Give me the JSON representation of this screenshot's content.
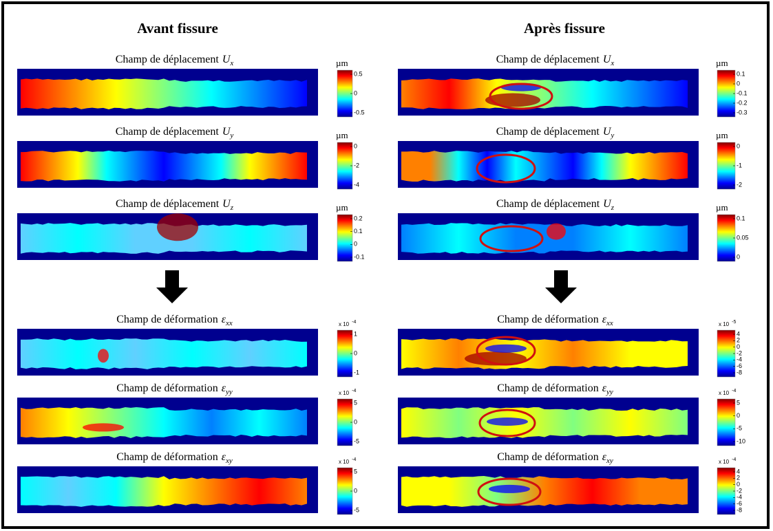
{
  "columns": [
    {
      "title": "Avant  fissure",
      "panels": [
        {
          "label": "Champ de déplacement",
          "symbol": "U",
          "sub": "x",
          "unit": "µm",
          "ticks": [
            "0.5",
            "0",
            "-0.5"
          ]
        },
        {
          "label": "Champ de déplacement",
          "symbol": "U",
          "sub": "y",
          "unit": "µm",
          "ticks": [
            "0",
            "-2",
            "-4"
          ]
        },
        {
          "label": "Champ de déplacement",
          "symbol": "U",
          "sub": "z",
          "unit": "µm",
          "ticks": [
            "0.2",
            "0.1",
            "0",
            "-0.1"
          ]
        },
        {
          "label": "Champ de déformation",
          "symbol": "ε",
          "sub": "xx",
          "unit": "x 10",
          "exp": "-4",
          "ticks": [
            "1",
            "0",
            "-1"
          ]
        },
        {
          "label": "Champ de déformation",
          "symbol": "ε",
          "sub": "yy",
          "unit": "x 10",
          "exp": "-4",
          "ticks": [
            "5",
            "0",
            "-5"
          ]
        },
        {
          "label": "Champ de déformation",
          "symbol": "ε",
          "sub": "xy",
          "unit": "x 10",
          "exp": "-4",
          "ticks": [
            "5",
            "0",
            "-5"
          ]
        }
      ]
    },
    {
      "title": "Après fissure",
      "panels": [
        {
          "label": "Champ de déplacement",
          "symbol": "U",
          "sub": "x",
          "unit": "µm",
          "ticks": [
            "0.1",
            "0",
            "-0.1",
            "-0.2",
            "-0.3"
          ]
        },
        {
          "label": "Champ de déplacement",
          "symbol": "U",
          "sub": "y",
          "unit": "µm",
          "ticks": [
            "0",
            "-1",
            "-2"
          ]
        },
        {
          "label": "Champ de déplacement",
          "symbol": "U",
          "sub": "z",
          "unit": "µm",
          "ticks": [
            "0.1",
            "0.05",
            "0"
          ]
        },
        {
          "label": "Champ de déformation",
          "symbol": "ε",
          "sub": "xx",
          "unit": "x 10",
          "exp": "-5",
          "ticks": [
            "4",
            "2",
            "0",
            "-2",
            "-4",
            "-6",
            "-8"
          ]
        },
        {
          "label": "Champ de déformation",
          "symbol": "ε",
          "sub": "yy",
          "unit": "x 10",
          "exp": "-4",
          "ticks": [
            "5",
            "0",
            "-5",
            "-10"
          ]
        },
        {
          "label": "Champ de déformation",
          "symbol": "ε",
          "sub": "xy",
          "unit": "x 10",
          "exp": "-4",
          "ticks": [
            "4",
            "2",
            "0",
            "-2",
            "-4",
            "-6",
            "-8"
          ]
        }
      ]
    }
  ]
}
